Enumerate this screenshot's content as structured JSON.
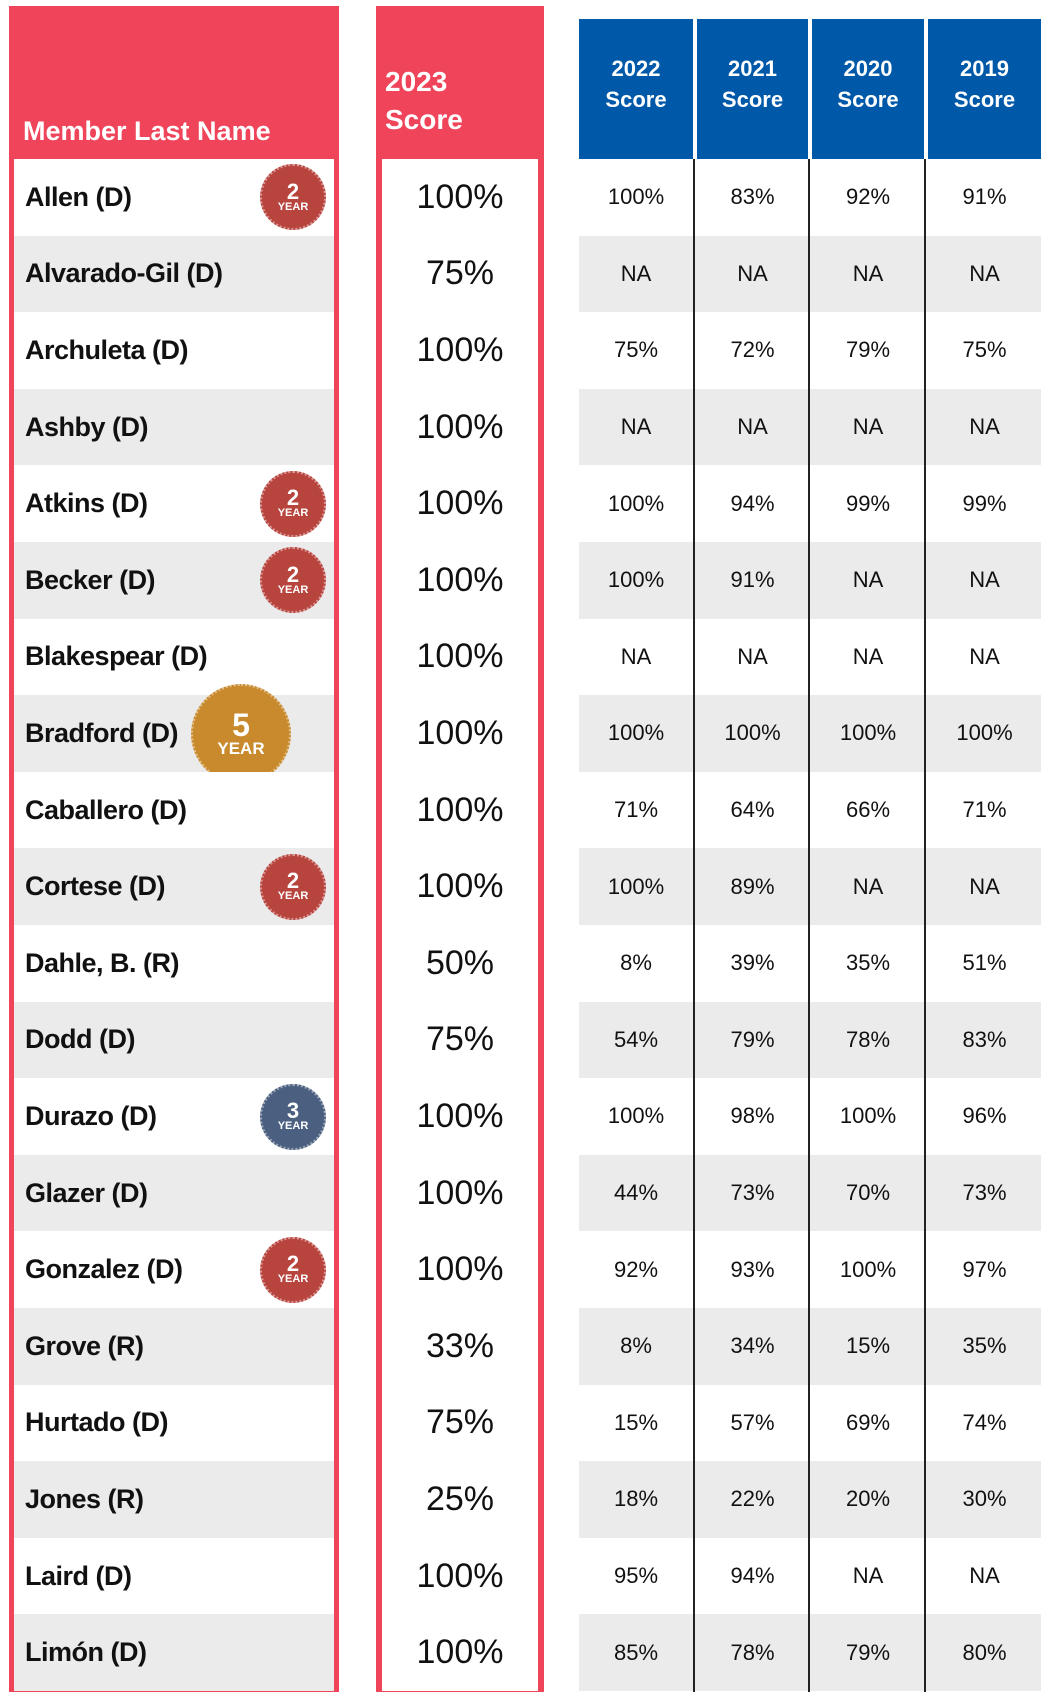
{
  "header": {
    "member": "Member Last Name",
    "score2023": [
      "2023",
      "Score"
    ],
    "years": [
      [
        "2022",
        "Score"
      ],
      [
        "2021",
        "Score"
      ],
      [
        "2020",
        "Score"
      ],
      [
        "2019",
        "Score"
      ]
    ]
  },
  "rows": [
    {
      "name": "Allen (D)",
      "badge": {
        "number": "2",
        "label": "YEAR",
        "color": "#b8443e"
      },
      "score2023": "100%",
      "scores": [
        "100%",
        "83%",
        "92%",
        "91%"
      ]
    },
    {
      "name": "Alvarado-Gil (D)",
      "score2023": "75%",
      "scores": [
        "NA",
        "NA",
        "NA",
        "NA"
      ]
    },
    {
      "name": "Archuleta (D)",
      "score2023": "100%",
      "scores": [
        "75%",
        "72%",
        "79%",
        "75%"
      ]
    },
    {
      "name": "Ashby (D)",
      "score2023": "100%",
      "scores": [
        "NA",
        "NA",
        "NA",
        "NA"
      ]
    },
    {
      "name": "Atkins (D)",
      "badge": {
        "number": "2",
        "label": "YEAR",
        "color": "#b8443e"
      },
      "score2023": "100%",
      "scores": [
        "100%",
        "94%",
        "99%",
        "99%"
      ]
    },
    {
      "name": "Becker (D)",
      "badge": {
        "number": "2",
        "label": "YEAR",
        "color": "#b8443e"
      },
      "score2023": "100%",
      "scores": [
        "100%",
        "91%",
        "NA",
        "NA"
      ]
    },
    {
      "name": "Blakespear (D)",
      "score2023": "100%",
      "scores": [
        "NA",
        "NA",
        "NA",
        "NA"
      ]
    },
    {
      "name": "Bradford (D)",
      "badge": {
        "number": "5",
        "label": "YEAR",
        "color": "#c88a2c"
      },
      "score2023": "100%",
      "scores": [
        "100%",
        "100%",
        "100%",
        "100%"
      ]
    },
    {
      "name": "Caballero (D)",
      "score2023": "100%",
      "scores": [
        "71%",
        "64%",
        "66%",
        "71%"
      ]
    },
    {
      "name": "Cortese (D)",
      "badge": {
        "number": "2",
        "label": "YEAR",
        "color": "#b8443e"
      },
      "score2023": "100%",
      "scores": [
        "100%",
        "89%",
        "NA",
        "NA"
      ]
    },
    {
      "name": "Dahle, B. (R)",
      "score2023": "50%",
      "scores": [
        "8%",
        "39%",
        "35%",
        "51%"
      ]
    },
    {
      "name": "Dodd (D)",
      "score2023": "75%",
      "scores": [
        "54%",
        "79%",
        "78%",
        "83%"
      ]
    },
    {
      "name": "Durazo (D)",
      "badge": {
        "number": "3",
        "label": "YEAR",
        "color": "#4b5f80"
      },
      "score2023": "100%",
      "scores": [
        "100%",
        "98%",
        "100%",
        "96%"
      ]
    },
    {
      "name": "Glazer (D)",
      "score2023": "100%",
      "scores": [
        "44%",
        "73%",
        "70%",
        "73%"
      ]
    },
    {
      "name": "Gonzalez (D)",
      "badge": {
        "number": "2",
        "label": "YEAR",
        "color": "#b8443e"
      },
      "score2023": "100%",
      "scores": [
        "92%",
        "93%",
        "100%",
        "97%"
      ]
    },
    {
      "name": "Grove (R)",
      "score2023": "33%",
      "scores": [
        "8%",
        "34%",
        "15%",
        "35%"
      ]
    },
    {
      "name": "Hurtado (D)",
      "score2023": "75%",
      "scores": [
        "15%",
        "57%",
        "69%",
        "74%"
      ]
    },
    {
      "name": "Jones (R)",
      "score2023": "25%",
      "scores": [
        "18%",
        "22%",
        "20%",
        "30%"
      ]
    },
    {
      "name": "Laird (D)",
      "score2023": "100%",
      "scores": [
        "95%",
        "94%",
        "NA",
        "NA"
      ]
    },
    {
      "name": "Limón (D)",
      "score2023": "100%",
      "scores": [
        "85%",
        "78%",
        "79%",
        "80%"
      ]
    }
  ]
}
